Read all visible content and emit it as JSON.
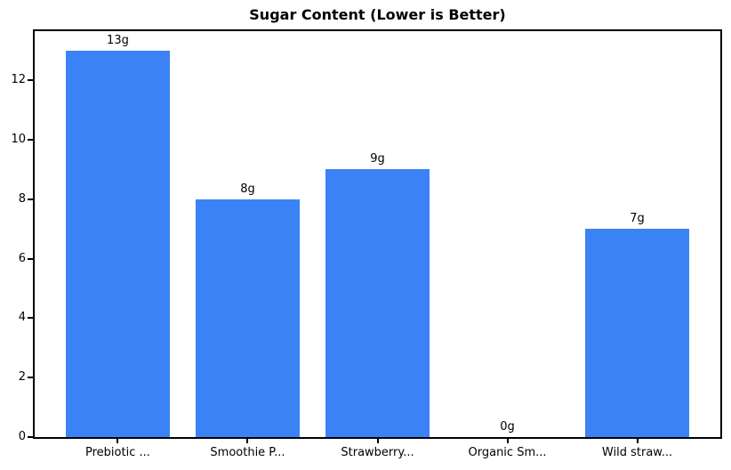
{
  "window": {
    "background": "#ffffff"
  },
  "chart_data": {
    "type": "bar",
    "title": "Sugar Content (Lower is Better)",
    "categories": [
      "Prebiotic ...",
      "Smoothie P...",
      "Strawberry...",
      "Organic Sm...",
      "Wild straw..."
    ],
    "values": [
      13,
      8,
      9,
      0,
      7
    ],
    "bar_labels": [
      "13g",
      "8g",
      "9g",
      "0g",
      "7g"
    ],
    "xlabel": "",
    "ylabel": "",
    "ylim": [
      0,
      13.65
    ],
    "yticks": [
      0,
      2,
      4,
      6,
      8,
      10,
      12
    ],
    "bar_width_fraction": 0.8,
    "x_margin": 0.24,
    "bar_color": "#3b82f6",
    "text_color": "#000000",
    "spine_color": "#000000",
    "grid": false,
    "legend": "none"
  }
}
